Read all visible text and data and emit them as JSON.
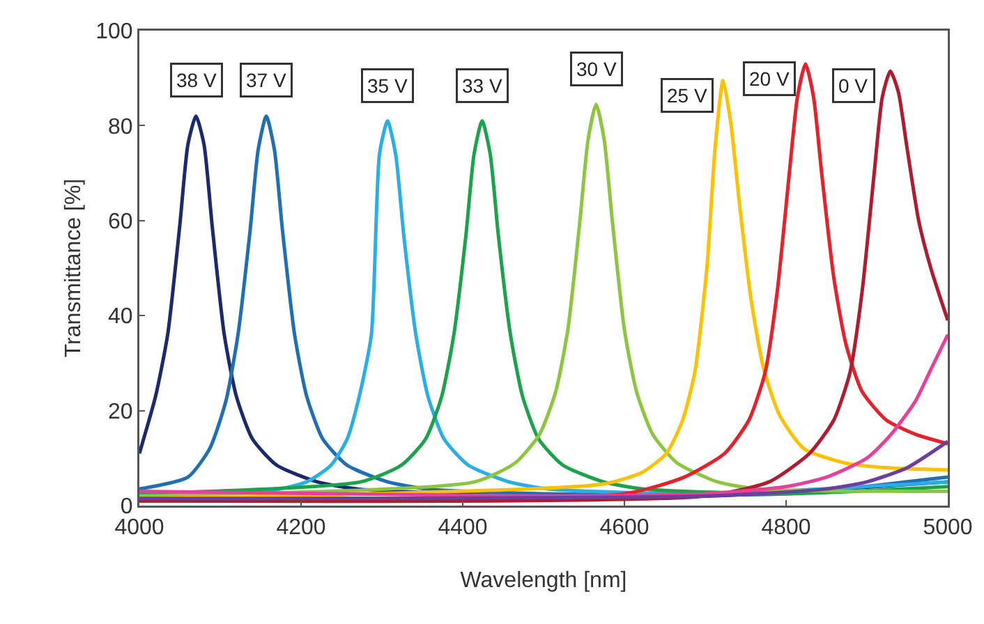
{
  "chart_data": {
    "type": "line",
    "xlabel": "Wavelength [nm]",
    "ylabel": "Transmittance [%]",
    "xlim": [
      4000,
      5000
    ],
    "xticks": [
      4000,
      4200,
      4400,
      4600,
      4800,
      5000
    ],
    "ylim": [
      0,
      100
    ],
    "yticks": [
      0,
      20,
      40,
      60,
      80,
      100
    ],
    "grid": false,
    "legend": false,
    "marker": "none",
    "line_style": "solid",
    "series": [
      {
        "name": "38 V",
        "color": "#1a2a6c",
        "x": [
          4000,
          4020,
          4035,
          4050,
          4060,
          4070,
          4080,
          4090,
          4105,
          4120,
          4140,
          4170,
          4220,
          4270,
          4400,
          4700,
          5000
        ],
        "values": [
          11,
          23,
          36,
          59,
          76,
          82,
          76,
          59,
          36,
          23,
          14,
          8.5,
          5,
          3.5,
          2.5,
          2,
          5
        ]
      },
      {
        "name": "37 V",
        "color": "#1f6fb5",
        "x": [
          4000,
          4060,
          4087,
          4107,
          4122,
          4137,
          4147,
          4157,
          4167,
          4177,
          4192,
          4207,
          4227,
          4257,
          4307,
          4357,
          4500,
          4800,
          5000
        ],
        "values": [
          3.5,
          6,
          12,
          22,
          36,
          58,
          75,
          82,
          75,
          58,
          36,
          23,
          14,
          8.5,
          5,
          3.5,
          2.5,
          2.5,
          6
        ]
      },
      {
        "name": "35 V",
        "color": "#29aee6",
        "x": [
          4000,
          4157,
          4207,
          4237,
          4257,
          4272,
          4287,
          4297,
          4307,
          4317,
          4327,
          4342,
          4357,
          4377,
          4407,
          4457,
          4507,
          4700,
          5000
        ],
        "values": [
          2.5,
          3,
          5,
          8.5,
          14,
          23,
          36,
          74,
          81,
          74,
          57,
          36,
          23,
          14,
          8.5,
          5,
          3.5,
          2.5,
          5
        ]
      },
      {
        "name": "33 V",
        "color": "#1aa34a",
        "x": [
          4000,
          4274,
          4324,
          4354,
          4374,
          4389,
          4404,
          4414,
          4424,
          4434,
          4444,
          4459,
          4474,
          4494,
          4524,
          4574,
          4624,
          4800,
          5000
        ],
        "values": [
          2.5,
          5,
          8.5,
          14,
          23,
          36,
          57,
          74,
          81,
          74,
          57,
          36,
          23,
          14,
          8.5,
          5,
          3.5,
          2.5,
          4
        ]
      },
      {
        "name": "30 V",
        "color": "#8cc63f",
        "x": [
          4000,
          4415,
          4465,
          4495,
          4515,
          4530,
          4545,
          4555,
          4565,
          4575,
          4585,
          4600,
          4615,
          4635,
          4665,
          4715,
          4765,
          5000
        ],
        "values": [
          2,
          5,
          9,
          15,
          24,
          37,
          60,
          77,
          84.5,
          77,
          60,
          37,
          24,
          15,
          9,
          5,
          3.5,
          3
        ]
      },
      {
        "name": "25 V",
        "color": "#ffc000",
        "x": [
          4000,
          4572,
          4622,
          4652,
          4672,
          4687,
          4702,
          4712,
          4722,
          4732,
          4742,
          4757,
          4772,
          4792,
          4822,
          4872,
          4922,
          5000
        ],
        "values": [
          1.5,
          4.5,
          7,
          11,
          18,
          28,
          50,
          75,
          89.5,
          80,
          64,
          43,
          29,
          19,
          12,
          9,
          8,
          7.5
        ]
      },
      {
        "name": "20 V",
        "color": "#e8202a",
        "x": [
          4000,
          4600,
          4674,
          4724,
          4754,
          4774,
          4789,
          4804,
          4814,
          4824,
          4834,
          4844,
          4859,
          4874,
          4894,
          4924,
          4960,
          5000
        ],
        "values": [
          1,
          2.5,
          6,
          11,
          18,
          28,
          45,
          70,
          86,
          93,
          86,
          70,
          48,
          34,
          24,
          18,
          15,
          13
        ]
      },
      {
        "name": "0 V",
        "color": "#b01c2e",
        "x": [
          4000,
          4700,
          4779,
          4829,
          4859,
          4879,
          4894,
          4909,
          4919,
          4929,
          4939,
          4949,
          4964,
          4979,
          5000
        ],
        "values": [
          1,
          2,
          5,
          11,
          18,
          28,
          45,
          70,
          86,
          91.5,
          87,
          76,
          60,
          50,
          39
        ]
      },
      {
        "color": "#e8409a",
        "x": [
          4000,
          4500,
          4700,
          4800,
          4850,
          4900,
          4930,
          4960,
          4980,
          5000
        ],
        "values": [
          3,
          2,
          2.5,
          4,
          6,
          10,
          15,
          22,
          29,
          36
        ]
      },
      {
        "color": "#6a3fa0",
        "x": [
          4000,
          4700,
          4850,
          4900,
          4950,
          5000
        ],
        "values": [
          1.5,
          2,
          3.5,
          5,
          8,
          13.5
        ]
      }
    ]
  }
}
